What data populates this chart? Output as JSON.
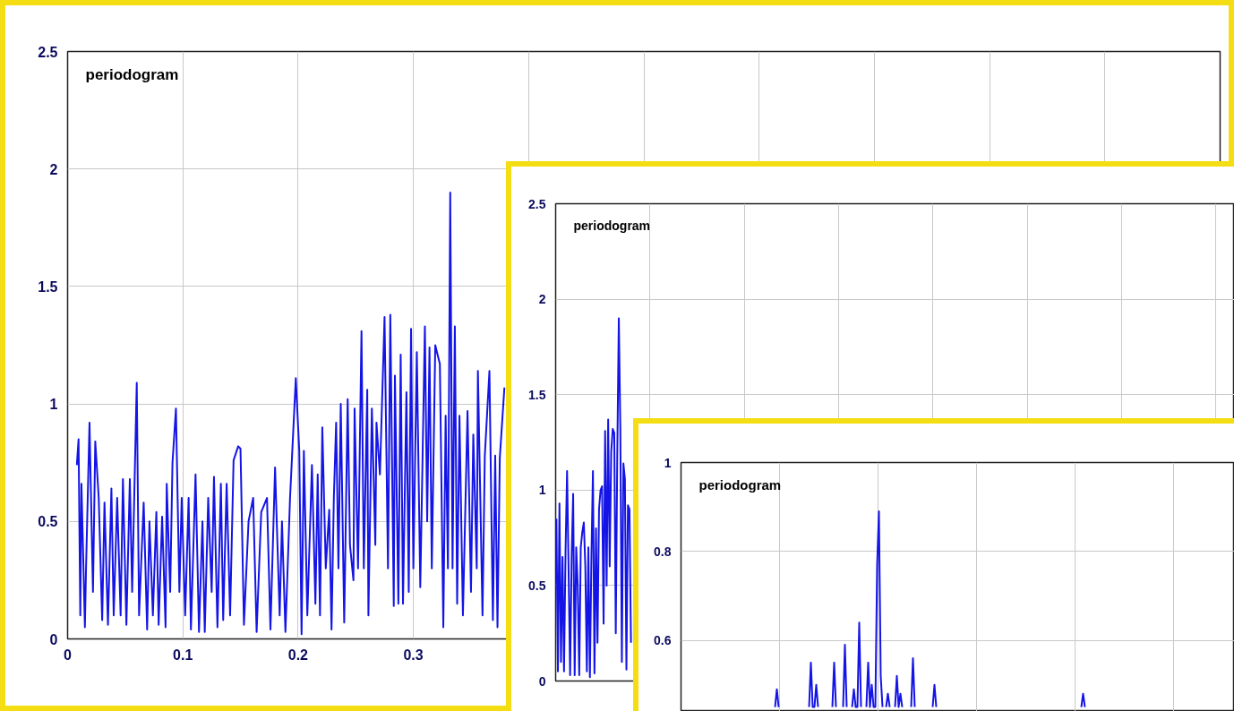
{
  "chart_data": [
    {
      "type": "line",
      "title": "periodogram",
      "color": "#1414e6",
      "grid": true,
      "xlim": [
        0,
        1
      ],
      "ylim": [
        0,
        2.5
      ],
      "xticks": [
        0,
        0.1,
        0.2,
        0.3,
        {
          "value": 0.4,
          "label": null
        },
        {
          "value": 0.5,
          "label": null
        },
        {
          "value": 0.6,
          "label": null
        },
        {
          "value": 0.7,
          "label": null
        },
        {
          "value": 0.8,
          "label": null
        },
        {
          "value": 0.9,
          "label": null
        },
        {
          "value": 1,
          "label": null
        }
      ],
      "yticks": [
        0,
        0.5,
        1,
        1.5,
        2,
        2.5
      ],
      "x": [
        0.008,
        0.0095,
        0.011,
        0.012,
        0.015,
        0.016,
        0.019,
        0.022,
        0.024,
        0.027,
        0.03,
        0.032,
        0.035,
        0.038,
        0.04,
        0.043,
        0.046,
        0.048,
        0.051,
        0.054,
        0.056,
        0.06,
        0.062,
        0.066,
        0.069,
        0.071,
        0.074,
        0.077,
        0.079,
        0.082,
        0.085,
        0.086,
        0.089,
        0.091,
        0.094,
        0.097,
        0.099,
        0.102,
        0.105,
        0.107,
        0.111,
        0.114,
        0.117,
        0.119,
        0.122,
        0.125,
        0.127,
        0.13,
        0.133,
        0.135,
        0.138,
        0.141,
        0.144,
        0.148,
        0.15,
        0.153,
        0.157,
        0.161,
        0.164,
        0.168,
        0.173,
        0.176,
        0.18,
        0.184,
        0.186,
        0.189,
        0.193,
        0.198,
        0.201,
        0.203,
        0.205,
        0.208,
        0.212,
        0.215,
        0.217,
        0.219,
        0.221,
        0.224,
        0.227,
        0.229,
        0.231,
        0.233,
        0.235,
        0.237,
        0.24,
        0.243,
        0.245,
        0.248,
        0.249,
        0.252,
        0.255,
        0.257,
        0.26,
        0.261,
        0.264,
        0.267,
        0.268,
        0.271,
        0.275,
        0.278,
        0.28,
        0.283,
        0.284,
        0.287,
        0.289,
        0.291,
        0.294,
        0.296,
        0.298,
        0.3,
        0.303,
        0.306,
        0.31,
        0.312,
        0.314,
        0.316,
        0.319,
        0.323,
        0.326,
        0.328,
        0.33,
        0.332,
        0.334,
        0.336,
        0.338,
        0.34,
        0.343,
        0.347,
        0.35,
        0.352,
        0.355,
        0.356,
        0.36,
        0.362,
        0.366,
        0.369,
        0.371,
        0.373,
        0.375,
        0.379
      ],
      "values": [
        0.74,
        0.85,
        0.1,
        0.66,
        0.05,
        0.3,
        0.92,
        0.2,
        0.84,
        0.6,
        0.08,
        0.58,
        0.06,
        0.64,
        0.1,
        0.6,
        0.1,
        0.68,
        0.06,
        0.68,
        0.2,
        1.09,
        0.1,
        0.58,
        0.04,
        0.5,
        0.1,
        0.54,
        0.06,
        0.52,
        0.05,
        0.66,
        0.2,
        0.75,
        0.98,
        0.2,
        0.6,
        0.1,
        0.6,
        0.04,
        0.7,
        0.03,
        0.5,
        0.03,
        0.6,
        0.2,
        0.69,
        0.05,
        0.66,
        0.08,
        0.66,
        0.1,
        0.76,
        0.82,
        0.81,
        0.06,
        0.5,
        0.6,
        0.03,
        0.54,
        0.6,
        0.04,
        0.73,
        0.1,
        0.5,
        0.03,
        0.6,
        1.11,
        0.8,
        0.02,
        0.8,
        0.1,
        0.74,
        0.15,
        0.7,
        0.1,
        0.9,
        0.3,
        0.55,
        0.04,
        0.6,
        0.92,
        0.3,
        1.0,
        0.07,
        1.02,
        0.4,
        0.25,
        0.98,
        0.3,
        1.31,
        0.3,
        1.06,
        0.1,
        0.98,
        0.4,
        0.92,
        0.7,
        1.37,
        0.3,
        1.38,
        0.14,
        1.12,
        0.15,
        1.21,
        0.15,
        1.05,
        0.2,
        1.32,
        0.3,
        1.22,
        0.22,
        1.33,
        0.5,
        1.24,
        0.3,
        1.25,
        1.17,
        0.05,
        0.95,
        0.3,
        1.9,
        0.3,
        1.33,
        0.15,
        0.95,
        0.1,
        0.97,
        0.2,
        0.87,
        0.3,
        1.14,
        0.1,
        0.78,
        1.14,
        0.08,
        0.78,
        0.05,
        0.77,
        1.07
      ]
    },
    {
      "type": "line",
      "title": "periodogram",
      "color": "#1414e6",
      "grid": true,
      "ylim": [
        0,
        2.5
      ],
      "yticks": [
        0,
        0.5,
        1,
        1.5,
        2,
        2.5
      ],
      "annotations": [
        "0"
      ],
      "categories": [
        null,
        null,
        null,
        null,
        null,
        null,
        null,
        null,
        null,
        null,
        null,
        null,
        null,
        null,
        null,
        null,
        null,
        null,
        null,
        null,
        null,
        null,
        null,
        null,
        null,
        null,
        null,
        null,
        null,
        null,
        null,
        null,
        null,
        null,
        null,
        null,
        null,
        null,
        null,
        null,
        null,
        null,
        null,
        null,
        null,
        null,
        null,
        null,
        null,
        null,
        null,
        null,
        null,
        null,
        null,
        null,
        null,
        null,
        null,
        null,
        null,
        null,
        null,
        null,
        null,
        null,
        null,
        null,
        null,
        null,
        null,
        null,
        null,
        null,
        null,
        null,
        null,
        null,
        null,
        null,
        null,
        null,
        null,
        null,
        null,
        null,
        null,
        null,
        null,
        null,
        null,
        null,
        null,
        null,
        null,
        null,
        null,
        null,
        null,
        null,
        null,
        null,
        null,
        null,
        null,
        null,
        null,
        null,
        null,
        null,
        null,
        null,
        null,
        null,
        null,
        null,
        null,
        null,
        null,
        null,
        null,
        null,
        null,
        null,
        null,
        null,
        null,
        null,
        null,
        null,
        null,
        null,
        null,
        null,
        null,
        null,
        null,
        null,
        null,
        null,
        null,
        null,
        null,
        null,
        null,
        null,
        null,
        null,
        null,
        null,
        null,
        null,
        null,
        null,
        null,
        null,
        null,
        null,
        null,
        null,
        null,
        null,
        null,
        null,
        null,
        null,
        null,
        null,
        null,
        null,
        null,
        null,
        null,
        null,
        null,
        null,
        null,
        null,
        null,
        null,
        null,
        null,
        null,
        null,
        null,
        null,
        null,
        null,
        null,
        null,
        null,
        null,
        null,
        null,
        null,
        null,
        null,
        null,
        null,
        null,
        null,
        null,
        null,
        null,
        null,
        null,
        null,
        null,
        null,
        null,
        null,
        null,
        null,
        null,
        null,
        null,
        null,
        null,
        null,
        null,
        null,
        null,
        null,
        null,
        null,
        null,
        null,
        null,
        null,
        null,
        null,
        null,
        null,
        null,
        null,
        null,
        null,
        null,
        null,
        null,
        null,
        null,
        null,
        null,
        null,
        null,
        null,
        null,
        null,
        null,
        null,
        null,
        null,
        null,
        null,
        null,
        null,
        null,
        null,
        null,
        null,
        null,
        null,
        null,
        null,
        null,
        null,
        null,
        null,
        null,
        null,
        null,
        null,
        null,
        null,
        null,
        null,
        null,
        null,
        null,
        null,
        null,
        null,
        null,
        null,
        null,
        null,
        null,
        null,
        null,
        null,
        null,
        null,
        null,
        null,
        null,
        null,
        null,
        null,
        null,
        null,
        null,
        null,
        null,
        null,
        null,
        null,
        null,
        null,
        null,
        null,
        null,
        null,
        null,
        null,
        null,
        null,
        null,
        null,
        null,
        null,
        null,
        null,
        null,
        null,
        null,
        null,
        null,
        null,
        null,
        null,
        null,
        null,
        null,
        null,
        null,
        null,
        null,
        null,
        null,
        null,
        null,
        null,
        null,
        null,
        null,
        null,
        null,
        null,
        null,
        null,
        null,
        null,
        null,
        null,
        null,
        null,
        null,
        null,
        null,
        null,
        null,
        null,
        null,
        null,
        null,
        null,
        null,
        null,
        null,
        null,
        null,
        null,
        null,
        null,
        null,
        null,
        null,
        null,
        null,
        null,
        null,
        null,
        null,
        null,
        null,
        null,
        null,
        null,
        null,
        null,
        null,
        null,
        null,
        null,
        null,
        null,
        null,
        null,
        null,
        null,
        null,
        null,
        null,
        null,
        null,
        null,
        null,
        null,
        null,
        null,
        null,
        null,
        null,
        null,
        null,
        null,
        null,
        null,
        null,
        null,
        null,
        null,
        null,
        null,
        null,
        null,
        null,
        null,
        null,
        null,
        null,
        null,
        null,
        null,
        null,
        null,
        null,
        null,
        null,
        null,
        null,
        null,
        null,
        null,
        null
      ],
      "values": [
        0.85,
        0.05,
        0.93,
        0.1,
        0.65,
        0.05,
        0.68,
        1.1,
        0.58,
        0.03,
        0.65,
        0.98,
        0.03,
        0.7,
        0.5,
        0.03,
        0.7,
        0.78,
        0.83,
        0.6,
        0.05,
        0.7,
        0.02,
        0.65,
        1.1,
        0.04,
        0.8,
        0.2,
        0.9,
        1.0,
        1.02,
        0.3,
        1.31,
        0.5,
        1.37,
        0.6,
        1.2,
        1.32,
        1.3,
        0.25,
        1.2,
        1.9,
        1.32,
        0.1,
        1.14,
        1.06,
        0.06,
        0.92,
        0.9,
        0.2,
        null,
        null,
        null,
        null,
        null,
        null,
        null,
        null,
        null,
        null,
        null,
        null,
        null,
        null,
        null,
        null,
        null,
        null,
        null,
        null,
        null,
        null,
        null,
        null,
        null,
        null,
        null,
        null,
        null,
        null,
        null,
        null,
        null,
        null,
        null,
        null,
        null,
        null,
        null,
        null,
        null,
        null,
        null,
        null,
        null,
        null,
        null,
        null,
        null,
        null,
        null,
        null,
        null,
        null,
        null,
        null,
        null,
        null,
        null,
        null,
        null,
        null,
        null,
        null,
        null,
        null,
        null,
        null,
        null,
        null,
        null,
        null,
        null,
        null,
        null,
        null,
        null,
        null,
        null,
        null,
        null,
        null,
        null,
        null,
        null,
        null,
        null,
        null,
        null,
        null,
        null,
        null,
        null,
        null,
        null,
        null,
        null,
        null,
        null,
        null,
        null,
        null,
        null,
        null,
        null,
        null,
        null,
        null,
        null,
        null,
        null,
        null,
        null,
        null,
        null,
        null,
        null,
        null,
        null,
        null,
        null,
        null,
        null,
        null,
        null,
        null,
        null,
        null,
        null,
        null,
        null,
        null,
        null,
        null,
        null,
        null,
        null,
        null,
        null,
        null,
        null,
        null,
        null,
        null,
        null,
        null,
        null,
        null,
        null,
        null,
        null,
        null,
        null,
        null,
        null,
        null,
        null,
        null,
        null,
        null,
        null,
        null,
        null,
        null,
        null,
        null,
        null,
        null,
        null,
        null,
        null,
        null,
        null,
        null,
        null,
        null,
        null,
        null,
        null,
        null,
        null,
        null,
        null,
        null,
        null,
        null,
        null,
        null,
        null,
        null,
        null,
        null,
        null,
        null,
        null,
        null,
        null,
        null,
        null,
        null,
        null,
        null,
        null,
        null,
        null,
        null,
        null,
        null,
        null,
        null,
        null,
        null,
        null,
        null,
        null,
        null,
        null,
        null,
        null,
        null,
        null,
        null,
        null,
        null,
        null,
        null,
        null,
        null,
        null,
        null,
        null,
        null,
        null,
        null,
        null,
        null,
        null,
        null,
        null,
        null,
        null,
        null,
        null,
        null,
        null,
        null,
        null,
        null,
        null,
        null,
        null,
        null,
        null,
        null,
        null,
        null,
        null,
        null,
        null,
        null,
        null,
        null,
        null,
        null,
        null,
        null,
        null,
        null,
        null,
        null,
        null,
        null,
        null,
        null,
        null,
        null,
        null,
        null,
        null,
        null,
        null,
        null,
        null,
        null,
        null,
        null,
        null,
        null,
        null,
        null,
        null,
        null,
        null,
        null,
        null,
        null,
        null,
        null,
        null,
        null,
        null,
        null,
        null,
        null,
        null,
        null,
        null,
        null,
        null,
        null,
        null,
        null,
        null,
        null,
        null,
        null,
        null,
        null,
        null,
        null,
        null,
        null,
        null,
        null,
        null,
        null,
        null,
        null,
        null,
        null,
        null,
        null,
        null,
        null,
        null,
        null,
        null,
        null,
        null,
        null,
        null,
        null,
        null,
        null,
        null,
        null,
        null,
        null,
        null,
        null,
        null,
        null,
        null,
        null,
        null,
        null,
        null,
        null,
        null,
        null,
        null,
        null,
        null,
        null,
        null,
        null,
        null,
        null,
        null,
        null,
        null,
        null,
        null,
        null,
        null,
        null,
        null,
        null,
        null,
        null,
        null,
        null,
        null,
        null,
        null,
        null,
        null,
        null,
        null,
        null,
        null,
        null,
        null,
        null,
        null,
        null
      ]
    },
    {
      "type": "line",
      "title": "periodogram",
      "color": "#1414e6",
      "grid": true,
      "ylim": [
        0.44,
        1
      ],
      "yticks": [
        0.6,
        0.8,
        1
      ],
      "categories": [
        null,
        null,
        null,
        null,
        null,
        null,
        null,
        null,
        null,
        null,
        null,
        null,
        null,
        null,
        null,
        null,
        null,
        null,
        null,
        null,
        null,
        null,
        null,
        null,
        null,
        null,
        null,
        null,
        null,
        null,
        null,
        null,
        null,
        null,
        null,
        null,
        null,
        null,
        null,
        null,
        null,
        null,
        null,
        null,
        null,
        null,
        null,
        null,
        null,
        null,
        null,
        null,
        null,
        null,
        null,
        null,
        null,
        null,
        null,
        null,
        null,
        null,
        null,
        null,
        null,
        null,
        null,
        null,
        null,
        null,
        null,
        null,
        null,
        null,
        null,
        null,
        null,
        null,
        null,
        null,
        null,
        null,
        null,
        null,
        null,
        null,
        null,
        null,
        null,
        null,
        null,
        null,
        null,
        null,
        null,
        null,
        null,
        null,
        null,
        null,
        null,
        null,
        null,
        null,
        null,
        null,
        null,
        null,
        null,
        null,
        null,
        null,
        null,
        null,
        null,
        null,
        null,
        null,
        null,
        null,
        null,
        null,
        null,
        null,
        null,
        null,
        null,
        null,
        null,
        null,
        null,
        null,
        null,
        null,
        null,
        null,
        null,
        null,
        null,
        null,
        null,
        null,
        null,
        null,
        null,
        null,
        null,
        null,
        null,
        null,
        null,
        null,
        null,
        null,
        null,
        null,
        null,
        null,
        null,
        null,
        null,
        null,
        null,
        null,
        null,
        null,
        null,
        null,
        null,
        null,
        null,
        null,
        null,
        null,
        null,
        null,
        null,
        null,
        null,
        null,
        null,
        null,
        null,
        null,
        null,
        null,
        null,
        null,
        null,
        null,
        null,
        null,
        null,
        null,
        null,
        null,
        null,
        null,
        null,
        null,
        null,
        null,
        null,
        null,
        null,
        null,
        null,
        null,
        null,
        null,
        null,
        null,
        null,
        null,
        null,
        null,
        null,
        null,
        null,
        null,
        null,
        null,
        null,
        null,
        null,
        null,
        null,
        null,
        null,
        null,
        null,
        null,
        null,
        null,
        null,
        null,
        null,
        null,
        null,
        null,
        null,
        null,
        null,
        null,
        null,
        null,
        null,
        null,
        null,
        null,
        null,
        null,
        null,
        null,
        null,
        null,
        null,
        null,
        null,
        null,
        null,
        null,
        null,
        null,
        null,
        null,
        null,
        null,
        null,
        null,
        null,
        null,
        null,
        null,
        null,
        null,
        null,
        null,
        null,
        null,
        null,
        null,
        null,
        null,
        null,
        null,
        null,
        null,
        null,
        null,
        null,
        null,
        null,
        null,
        null,
        null,
        null,
        null,
        null,
        null,
        null,
        null,
        null,
        null,
        null,
        null,
        null,
        null,
        null
      ],
      "values": [
        null,
        null,
        null,
        null,
        null,
        null,
        null,
        null,
        null,
        null,
        null,
        null,
        null,
        null,
        null,
        null,
        null,
        null,
        null,
        null,
        null,
        null,
        null,
        null,
        null,
        null,
        null,
        null,
        null,
        null,
        null,
        null,
        null,
        null,
        null,
        null,
        null,
        null,
        null,
        null,
        null,
        null,
        null,
        null,
        null,
        null,
        null,
        null,
        null,
        null,
        null,
        null,
        0.45,
        0.49,
        0.45,
        null,
        null,
        null,
        null,
        null,
        null,
        null,
        null,
        null,
        null,
        null,
        null,
        null,
        null,
        null,
        null,
        0.45,
        0.55,
        0.45,
        0.45,
        0.5,
        0.45,
        null,
        null,
        null,
        null,
        null,
        null,
        null,
        0.45,
        0.55,
        0.45,
        null,
        null,
        null,
        0.45,
        0.59,
        0.45,
        null,
        null,
        0.45,
        0.49,
        0.45,
        0.45,
        0.64,
        0.45,
        null,
        null,
        0.45,
        0.55,
        0.45,
        0.5,
        0.45,
        0.45,
        0.77,
        0.89,
        0.52,
        0.45,
        null,
        0.45,
        0.48,
        0.45,
        null,
        null,
        0.45,
        0.52,
        0.45,
        0.48,
        0.45,
        null,
        null,
        null,
        null,
        0.45,
        0.56,
        0.45,
        null,
        null,
        null,
        null,
        null,
        null,
        null,
        null,
        null,
        0.45,
        0.5,
        0.45,
        null,
        null,
        null,
        null,
        null,
        null,
        null,
        null,
        null,
        null,
        null,
        null,
        null,
        null,
        null,
        null,
        null,
        null,
        null,
        null,
        null,
        null,
        null,
        null,
        null,
        null,
        null,
        null,
        null,
        null,
        null,
        null,
        null,
        null,
        null,
        null,
        null,
        null,
        null,
        null,
        null,
        null,
        null,
        null,
        null,
        null,
        null,
        null,
        null,
        null,
        null,
        null,
        null,
        null,
        null,
        null,
        null,
        null,
        null,
        null,
        null,
        null,
        null,
        null,
        null,
        null,
        null,
        null,
        null,
        null,
        null,
        null,
        null,
        null,
        null,
        null,
        null,
        null,
        null,
        null,
        0.45,
        0.48,
        0.45,
        null,
        null,
        null,
        null,
        null,
        null,
        null,
        null,
        null,
        null,
        null,
        null,
        null,
        null,
        null,
        null,
        null,
        null,
        null,
        null,
        null,
        null,
        null,
        null,
        null,
        null,
        null,
        null,
        null,
        null,
        null,
        null,
        null,
        null,
        null,
        null,
        null,
        null,
        null,
        null,
        null,
        null,
        null,
        null,
        null,
        null,
        null,
        null,
        null,
        null,
        null,
        null,
        null,
        null,
        null,
        null,
        null,
        null,
        null,
        null,
        null,
        null,
        null,
        null,
        null,
        null,
        null,
        null,
        null,
        null,
        null,
        null,
        null,
        null,
        null,
        null,
        null,
        null,
        null,
        null,
        null,
        null,
        null
      ]
    }
  ]
}
